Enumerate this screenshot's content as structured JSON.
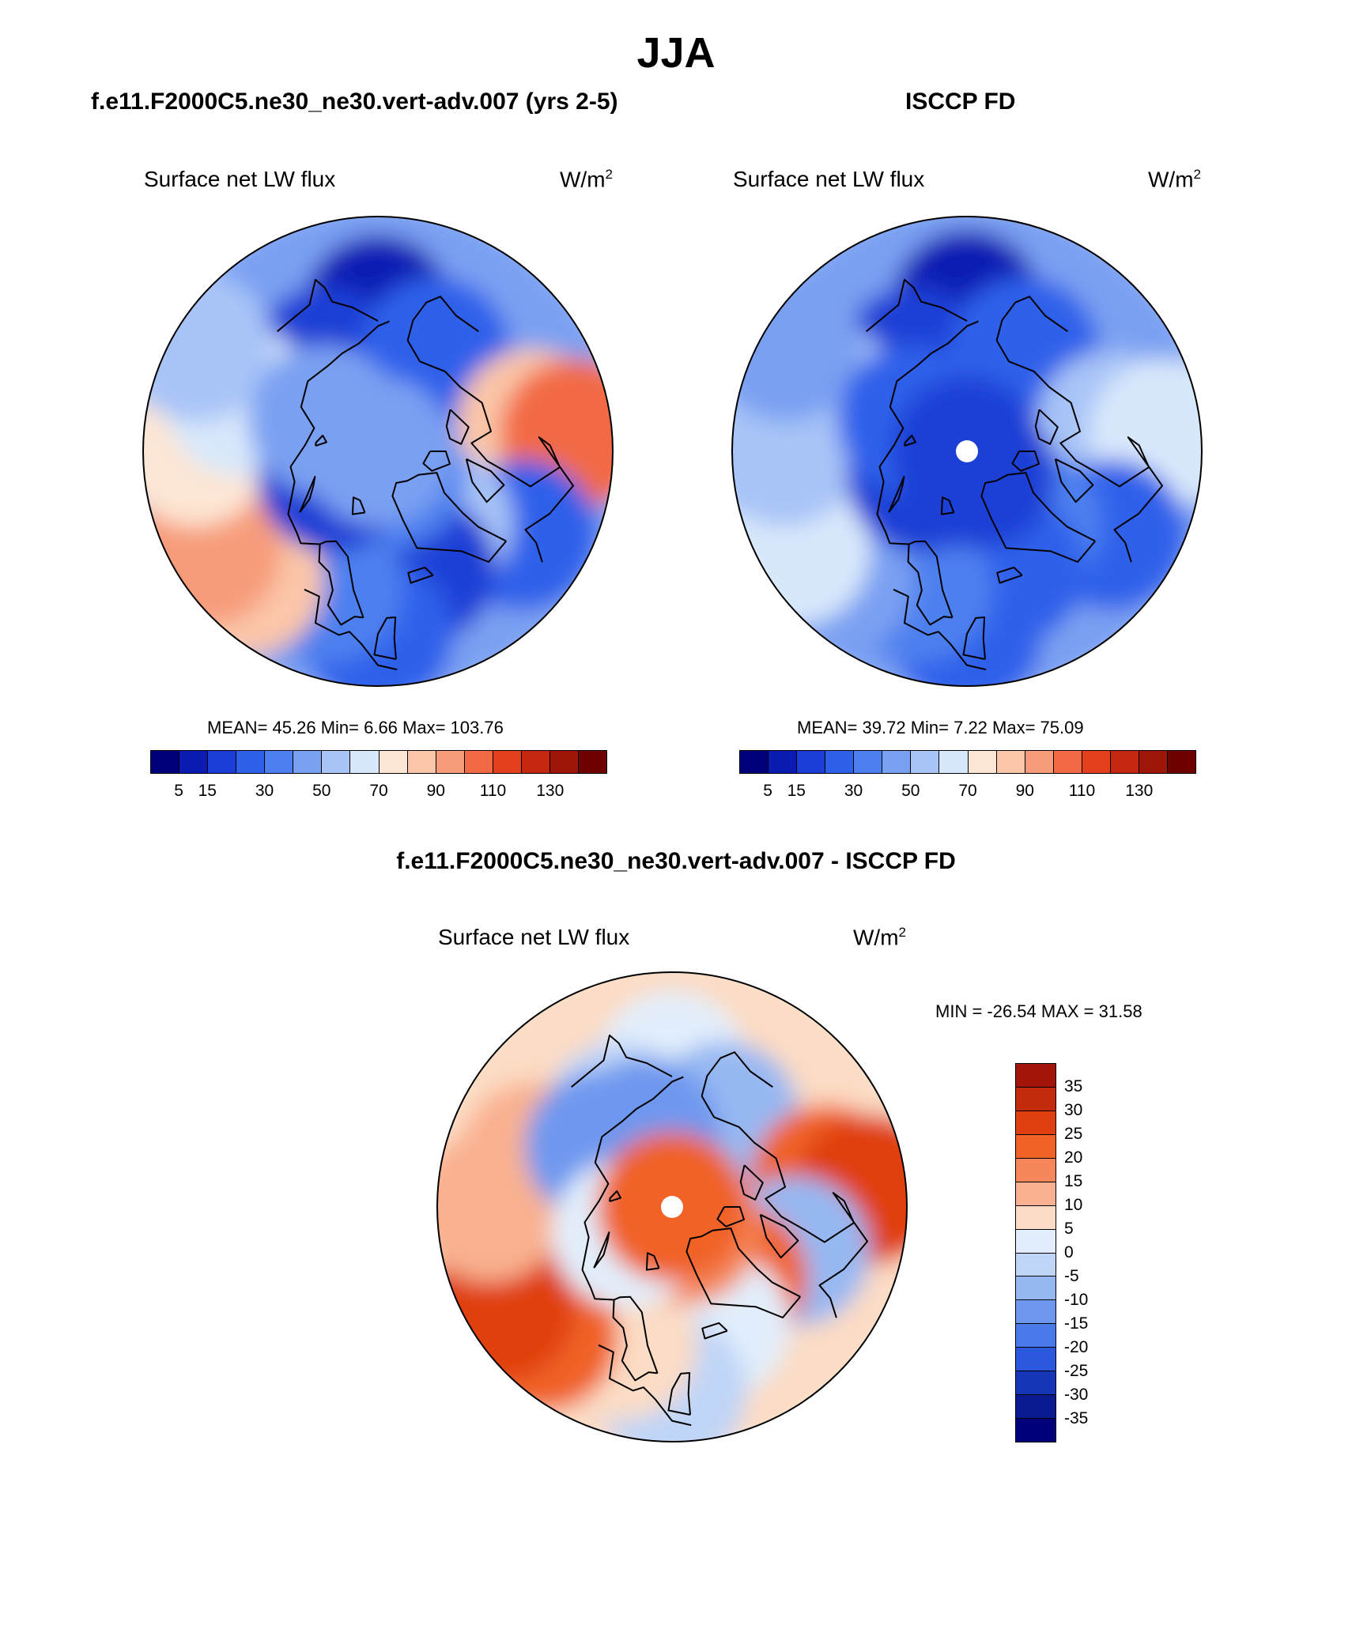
{
  "title": "JJA",
  "panels": [
    {
      "title": "f.e11.F2000C5.ne30_ne30.vert-adv.007 (yrs 2-5)",
      "variable": "Surface net LW flux",
      "units": "W/m",
      "units_sup": "2",
      "stats": "MEAN=  45.26  Min=   6.66  Max= 103.76"
    },
    {
      "title": "ISCCP FD",
      "variable": "Surface net LW flux",
      "units": "W/m",
      "units_sup": "2",
      "stats": "MEAN=  39.72  Min=   7.22  Max=  75.09"
    },
    {
      "title": "f.e11.F2000C5.ne30_ne30.vert-adv.007 - ISCCP FD",
      "variable": "Surface net LW flux",
      "units": "W/m",
      "units_sup": "2",
      "stats": "MIN = -26.54 MAX =  31.58"
    }
  ],
  "colorbar_main": {
    "colors": [
      "#00007a",
      "#0a1bb4",
      "#1b3fd6",
      "#2e60ea",
      "#4d80ef",
      "#7aa0f2",
      "#a8c4f7",
      "#d8e8fb",
      "#fde6d4",
      "#fbc6a8",
      "#f79c7a",
      "#f26a45",
      "#e4401e",
      "#c5280f",
      "#9e1608",
      "#6e0000"
    ],
    "ticks": [
      "5",
      "15",
      "30",
      "50",
      "70",
      "90",
      "110",
      "130"
    ]
  },
  "colorbar_diff": {
    "colors": [
      "#a31508",
      "#c42a0c",
      "#e0400f",
      "#f06228",
      "#f5875a",
      "#f9b18f",
      "#fcdcc4",
      "#e2eefb",
      "#bfd5f7",
      "#96b8f2",
      "#6e98ef",
      "#4a7aea",
      "#2b58dd",
      "#1636b8",
      "#0a1a90",
      "#00007a"
    ],
    "ticks": [
      "35",
      "30",
      "25",
      "20",
      "15",
      "10",
      "5",
      "0",
      "-5",
      "-10",
      "-15",
      "-20",
      "-25",
      "-30",
      "-35"
    ]
  },
  "map_fields": {
    "model": [
      {
        "lon": 180,
        "lat": 63,
        "v": 14
      },
      {
        "lon": 150,
        "lat": 70,
        "v": 28
      },
      {
        "lon": -150,
        "lat": 68,
        "v": 30
      },
      {
        "lon": -100,
        "lat": 60,
        "v": 95
      },
      {
        "lon": -95,
        "lat": 52,
        "v": 112
      },
      {
        "lon": -60,
        "lat": 58,
        "v": 38
      },
      {
        "lon": -40,
        "lat": 72,
        "v": 62
      },
      {
        "lon": -20,
        "lat": 66,
        "v": 28
      },
      {
        "lon": 0,
        "lat": 55,
        "v": 32
      },
      {
        "lon": 20,
        "lat": 62,
        "v": 42
      },
      {
        "lon": 45,
        "lat": 55,
        "v": 90
      },
      {
        "lon": 60,
        "lat": 52,
        "v": 108
      },
      {
        "lon": 90,
        "lat": 55,
        "v": 80
      },
      {
        "lon": 110,
        "lat": 62,
        "v": 72
      },
      {
        "lon": 120,
        "lat": 50,
        "v": 66
      },
      {
        "lon": -30,
        "lat": 85,
        "v": 40
      },
      {
        "lon": 60,
        "lat": 80,
        "v": 24
      },
      {
        "lon": 120,
        "lat": 78,
        "v": 50
      },
      {
        "lon": 0,
        "lat": 90,
        "v": 52
      }
    ],
    "obs": [
      {
        "lon": 180,
        "lat": 62,
        "v": 10
      },
      {
        "lon": 150,
        "lat": 70,
        "v": 26
      },
      {
        "lon": -150,
        "lat": 68,
        "v": 38
      },
      {
        "lon": -100,
        "lat": 62,
        "v": 68
      },
      {
        "lon": -95,
        "lat": 52,
        "v": 74
      },
      {
        "lon": -60,
        "lat": 58,
        "v": 38
      },
      {
        "lon": -40,
        "lat": 72,
        "v": 42
      },
      {
        "lon": -20,
        "lat": 66,
        "v": 34
      },
      {
        "lon": 0,
        "lat": 55,
        "v": 34
      },
      {
        "lon": 20,
        "lat": 62,
        "v": 45
      },
      {
        "lon": 45,
        "lat": 55,
        "v": 58
      },
      {
        "lon": 60,
        "lat": 52,
        "v": 72
      },
      {
        "lon": 90,
        "lat": 55,
        "v": 66
      },
      {
        "lon": 110,
        "lat": 62,
        "v": 62
      },
      {
        "lon": 120,
        "lat": 50,
        "v": 56
      },
      {
        "lon": -30,
        "lat": 85,
        "v": 28
      },
      {
        "lon": 60,
        "lat": 80,
        "v": 22
      },
      {
        "lon": 120,
        "lat": 78,
        "v": 30
      },
      {
        "lon": 0,
        "lat": 90,
        "v": 28
      }
    ],
    "diff": [
      {
        "lon": 180,
        "lat": 63,
        "v": 2
      },
      {
        "lon": 150,
        "lat": 70,
        "v": -2
      },
      {
        "lon": -150,
        "lat": 70,
        "v": -8
      },
      {
        "lon": -100,
        "lat": 60,
        "v": 24
      },
      {
        "lon": -95,
        "lat": 52,
        "v": 28
      },
      {
        "lon": -70,
        "lat": 65,
        "v": -6
      },
      {
        "lon": -40,
        "lat": 72,
        "v": 24
      },
      {
        "lon": -20,
        "lat": 66,
        "v": 2
      },
      {
        "lon": 0,
        "lat": 55,
        "v": -2
      },
      {
        "lon": 20,
        "lat": 62,
        "v": 6
      },
      {
        "lon": 45,
        "lat": 55,
        "v": 24
      },
      {
        "lon": 60,
        "lat": 52,
        "v": 26
      },
      {
        "lon": 90,
        "lat": 55,
        "v": 14
      },
      {
        "lon": 110,
        "lat": 62,
        "v": 12
      },
      {
        "lon": 130,
        "lat": 72,
        "v": -10
      },
      {
        "lon": 160,
        "lat": 75,
        "v": -12
      },
      {
        "lon": -30,
        "lat": 85,
        "v": 16
      },
      {
        "lon": 60,
        "lat": 80,
        "v": 4
      },
      {
        "lon": 0,
        "lat": 90,
        "v": 22
      }
    ]
  }
}
